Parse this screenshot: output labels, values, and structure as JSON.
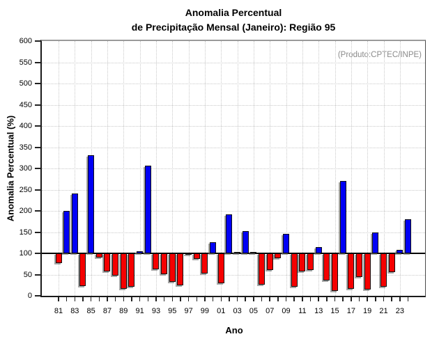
{
  "page": {
    "title_line1": "Anomalia Percentual",
    "title_line2": "de Precipitação Mensal (Janeiro): Região 95",
    "annotation": "(Produto:CPTEC/INPE)"
  },
  "chart_data": {
    "type": "bar",
    "title": "Anomalia Percentual de Precipitação Mensal (Janeiro): Região 95",
    "annotation": "(Produto:CPTEC/INPE)",
    "xlabel": "Ano",
    "ylabel": "Anomalia Percentual (%)",
    "ylim": [
      0,
      600
    ],
    "ytick_step": 50,
    "ytick_labels": [
      "0",
      "50",
      "100",
      "150",
      "200",
      "250",
      "300",
      "350",
      "400",
      "450",
      "500",
      "550",
      "600"
    ],
    "baseline": 100,
    "grid": true,
    "legend": "none",
    "bar_color_above_baseline": "#0000f5",
    "bar_color_below_baseline": "#f50000",
    "categories": [
      "81",
      "82",
      "83",
      "84",
      "85",
      "86",
      "87",
      "88",
      "89",
      "90",
      "91",
      "92",
      "93",
      "94",
      "95",
      "96",
      "97",
      "98",
      "99",
      "00",
      "01",
      "02",
      "03",
      "04",
      "05",
      "06",
      "07",
      "08",
      "09",
      "10",
      "11",
      "12",
      "13",
      "14",
      "15",
      "16",
      "17",
      "18",
      "19",
      "20",
      "21",
      "22",
      "23",
      "24"
    ],
    "x_tick_labels_shown": [
      "81",
      "83",
      "85",
      "87",
      "89",
      "91",
      "93",
      "95",
      "97",
      "99",
      "01",
      "03",
      "05",
      "07",
      "09",
      "11",
      "13",
      "15",
      "17",
      "19",
      "21",
      "23"
    ],
    "values": [
      77,
      200,
      241,
      23,
      331,
      90,
      57,
      48,
      16,
      22,
      105,
      307,
      63,
      51,
      32,
      25,
      97,
      87,
      52,
      127,
      29,
      192,
      104,
      153,
      104,
      26,
      60,
      89,
      146,
      21,
      58,
      60,
      115,
      36,
      11,
      270,
      16,
      45,
      14,
      149,
      22,
      55,
      109,
      180
    ]
  }
}
